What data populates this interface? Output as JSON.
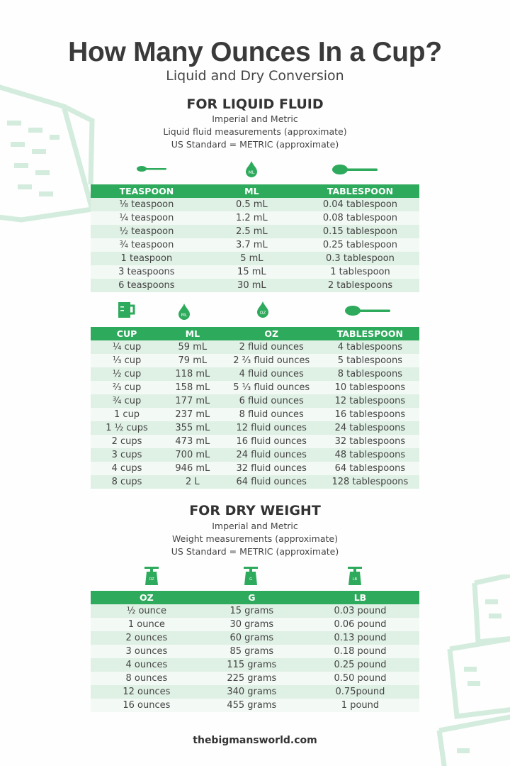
{
  "header": {
    "title": "How Many Ounces In a Cup?",
    "subtitle": "Liquid and Dry Conversion"
  },
  "colors": {
    "accent": "#2eaa5c",
    "row_light": "#f3f9f5",
    "row_dark": "#dff0e5",
    "decor": "#cfeadb"
  },
  "liquid": {
    "heading": "FOR LIQUID FLUID",
    "lines": [
      "Imperial and Metric",
      "Liquid fluid measurements (approximate)",
      "US Standard = METRIC (approximate)"
    ],
    "table1": {
      "icons": [
        "teaspoon-icon",
        "ml-drop-icon",
        "tablespoon-icon"
      ],
      "icon_labels": [
        "",
        "ML",
        ""
      ],
      "columns": [
        "TEASPOON",
        "ML",
        "TABLESPOON"
      ],
      "rows": [
        [
          "⅛ teaspoon",
          "0.5 mL",
          "0.04 tablespoon"
        ],
        [
          "¼ teaspoon",
          "1.2 mL",
          "0.08 tablespoon"
        ],
        [
          "½ teaspoon",
          "2.5 mL",
          "0.15 tablespoon"
        ],
        [
          "¾ teaspoon",
          "3.7 mL",
          "0.25 tablespoon"
        ],
        [
          "1 teaspoon",
          "5 mL",
          "0.3 tablespoon"
        ],
        [
          "3 teaspoons",
          "15 mL",
          "1 tablespoon"
        ],
        [
          "6 teaspoons",
          "30 mL",
          "2 tablespoons"
        ]
      ]
    },
    "table2": {
      "icons": [
        "measuring-cup-icon",
        "ml-drop-icon",
        "oz-drop-icon",
        "tablespoon-icon"
      ],
      "icon_labels": [
        "",
        "ML",
        "OZ",
        ""
      ],
      "columns": [
        "CUP",
        "ML",
        "OZ",
        "TABLESPOON"
      ],
      "rows": [
        [
          "¼ cup",
          "59 mL",
          "2 fluid ounces",
          "4 tablespoons"
        ],
        [
          "⅓ cup",
          "79 mL",
          "2 ⅔ fluid ounces",
          "5 tablespoons"
        ],
        [
          "½ cup",
          "118 mL",
          "4 fluid ounces",
          "8 tablespoons"
        ],
        [
          "⅔ cup",
          "158 mL",
          "5 ⅓ fluid ounces",
          "10 tablespoons"
        ],
        [
          "¾ cup",
          "177 mL",
          "6 fluid ounces",
          "12 tablespoons"
        ],
        [
          "1 cup",
          "237 mL",
          "8 fluid ounces",
          "16 tablespoons"
        ],
        [
          "1 ½ cups",
          "355 mL",
          "12 fluid ounces",
          "24 tablespoons"
        ],
        [
          "2 cups",
          "473 mL",
          "16 fluid ounces",
          "32 tablespoons"
        ],
        [
          "3 cups",
          "700 mL",
          "24 fluid ounces",
          "48 tablespoons"
        ],
        [
          "4 cups",
          "946 mL",
          "32 fluid ounces",
          "64 tablespoons"
        ],
        [
          "8 cups",
          "2 L",
          "64 fluid ounces",
          "128 tablespoons"
        ]
      ]
    }
  },
  "dry": {
    "heading": "FOR DRY WEIGHT",
    "lines": [
      "Imperial and Metric",
      "Weight measurements (approximate)",
      "US Standard = METRIC (approximate)"
    ],
    "table3": {
      "icons": [
        "scale-oz-icon",
        "scale-g-icon",
        "scale-lb-icon"
      ],
      "icon_labels": [
        "OZ",
        "G",
        "LB"
      ],
      "columns": [
        "OZ",
        "G",
        "LB"
      ],
      "rows": [
        [
          "½ ounce",
          "15 grams",
          "0.03 pound"
        ],
        [
          "1 ounce",
          "30 grams",
          "0.06 pound"
        ],
        [
          "2 ounces",
          "60 grams",
          "0.13 pound"
        ],
        [
          "3 ounces",
          "85 grams",
          "0.18 pound"
        ],
        [
          "4 ounces",
          "115 grams",
          "0.25 pound"
        ],
        [
          "8 ounces",
          "225 grams",
          "0.50 pound"
        ],
        [
          "12 ounces",
          "340 grams",
          "0.75pound"
        ],
        [
          "16 ounces",
          "455 grams",
          "1 pound"
        ]
      ]
    }
  },
  "footer": {
    "site": "thebigmansworld.com"
  }
}
